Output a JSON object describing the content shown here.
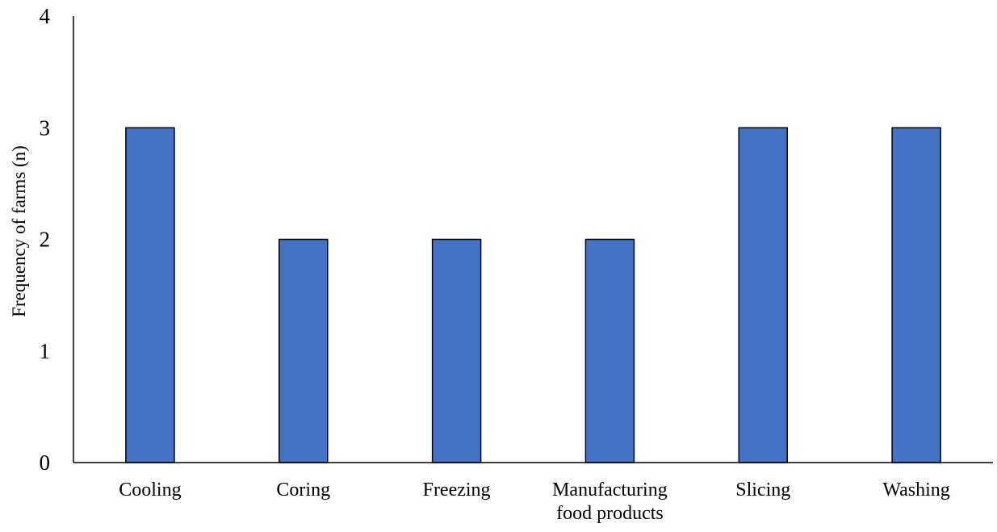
{
  "chart_data": {
    "type": "bar",
    "categories": [
      [
        "Cooling"
      ],
      [
        "Coring"
      ],
      [
        "Freezing"
      ],
      [
        "Manufacturing",
        "food products"
      ],
      [
        "Slicing"
      ],
      [
        "Washing"
      ]
    ],
    "values": [
      3,
      2,
      2,
      2,
      3,
      3
    ],
    "ylabel": "Frequency of farms (n)",
    "xlabel": "",
    "ylim": [
      0,
      4
    ],
    "yticks": [
      "0",
      "1",
      "2",
      "3",
      "4"
    ],
    "grid": false,
    "legend": "none",
    "bar_color": "#4472C4",
    "bar_edge_color": "#000000"
  }
}
